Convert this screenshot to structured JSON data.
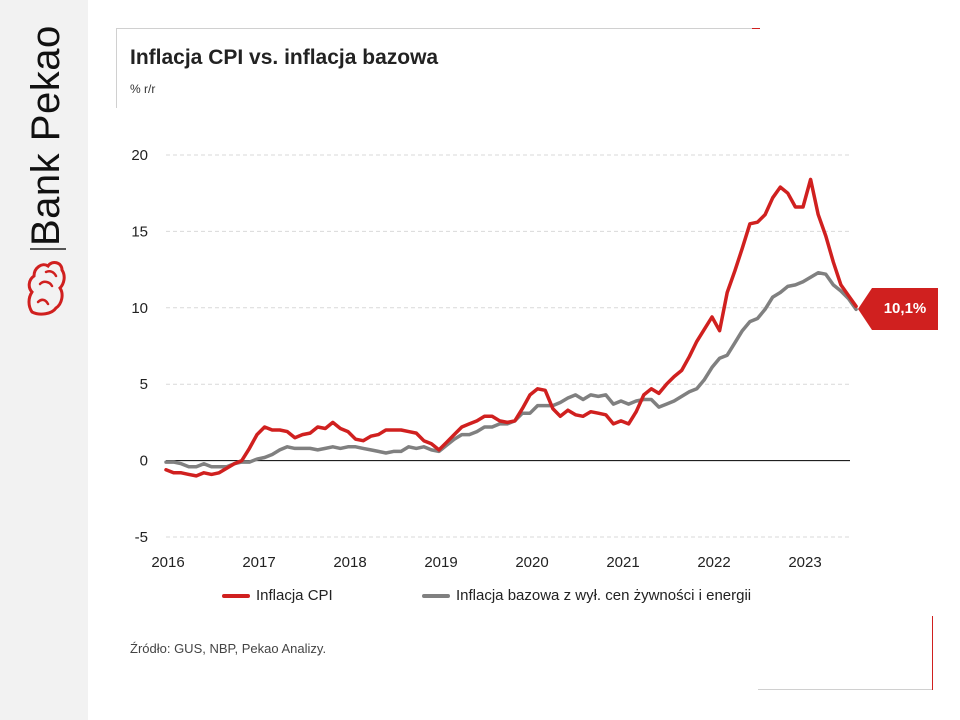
{
  "brand": {
    "name": "Bank Pekao",
    "logo_icon": "pekao-bison-icon",
    "accent_color": "#d0201f"
  },
  "header": {
    "title": "Inflacja CPI vs. inflacja bazowa",
    "unit": "% r/r"
  },
  "callout": {
    "value_label": "10,1%",
    "color": "#d0201f"
  },
  "source": "Źródło: GUS, NBP, Pekao Analizy.",
  "chart_data": {
    "type": "line",
    "x_start": "2016-01",
    "x_end": "2023-08",
    "x_tick_labels": [
      "2016",
      "2017",
      "2018",
      "2019",
      "2020",
      "2021",
      "2022",
      "2023"
    ],
    "ylim": [
      -5,
      20
    ],
    "y_ticks": [
      -5,
      0,
      5,
      10,
      15,
      20
    ],
    "y_tick_labels": [
      "-5",
      "0",
      "5",
      "10",
      "15",
      "20"
    ],
    "grid": "horizontal-dashed",
    "legend": "bottom",
    "series": [
      {
        "name": "Inflacja CPI",
        "color": "#d0201f",
        "values": [
          -0.6,
          -0.8,
          -0.8,
          -0.9,
          -1.0,
          -0.8,
          -0.9,
          -0.8,
          -0.5,
          -0.2,
          0.0,
          0.8,
          1.7,
          2.2,
          2.0,
          2.0,
          1.9,
          1.5,
          1.7,
          1.8,
          2.2,
          2.1,
          2.5,
          2.1,
          1.9,
          1.4,
          1.3,
          1.6,
          1.7,
          2.0,
          2.0,
          2.0,
          1.9,
          1.8,
          1.3,
          1.1,
          0.7,
          1.2,
          1.7,
          2.2,
          2.4,
          2.6,
          2.9,
          2.9,
          2.6,
          2.5,
          2.6,
          3.4,
          4.3,
          4.7,
          4.6,
          3.4,
          2.9,
          3.3,
          3.0,
          2.9,
          3.2,
          3.1,
          3.0,
          2.4,
          2.6,
          2.4,
          3.2,
          4.3,
          4.7,
          4.4,
          5.0,
          5.5,
          5.9,
          6.8,
          7.8,
          8.6,
          9.4,
          8.5,
          11.0,
          12.4,
          13.9,
          15.5,
          15.6,
          16.1,
          17.2,
          17.9,
          17.5,
          16.6,
          16.6,
          18.4,
          16.1,
          14.7,
          13.0,
          11.5,
          10.8,
          10.1
        ]
      },
      {
        "name": "Inflacja bazowa z wył. cen żywności i energii",
        "color": "#808080",
        "values": [
          -0.1,
          -0.1,
          -0.2,
          -0.4,
          -0.4,
          -0.2,
          -0.4,
          -0.4,
          -0.4,
          -0.2,
          -0.1,
          -0.1,
          0.1,
          0.2,
          0.4,
          0.7,
          0.9,
          0.8,
          0.8,
          0.8,
          0.7,
          0.8,
          0.9,
          0.8,
          0.9,
          0.9,
          0.8,
          0.7,
          0.6,
          0.5,
          0.6,
          0.6,
          0.9,
          0.8,
          0.9,
          0.7,
          0.6,
          1.0,
          1.4,
          1.7,
          1.7,
          1.9,
          2.2,
          2.2,
          2.4,
          2.4,
          2.6,
          3.1,
          3.1,
          3.6,
          3.6,
          3.6,
          3.8,
          4.1,
          4.3,
          4.0,
          4.3,
          4.2,
          4.3,
          3.7,
          3.9,
          3.7,
          3.9,
          4.0,
          4.0,
          3.5,
          3.7,
          3.9,
          4.2,
          4.5,
          4.7,
          5.3,
          6.1,
          6.7,
          6.9,
          7.7,
          8.5,
          9.1,
          9.3,
          9.9,
          10.7,
          11.0,
          11.4,
          11.5,
          11.7,
          12.0,
          12.3,
          12.2,
          11.5,
          11.1,
          10.6,
          9.9
        ]
      }
    ]
  }
}
